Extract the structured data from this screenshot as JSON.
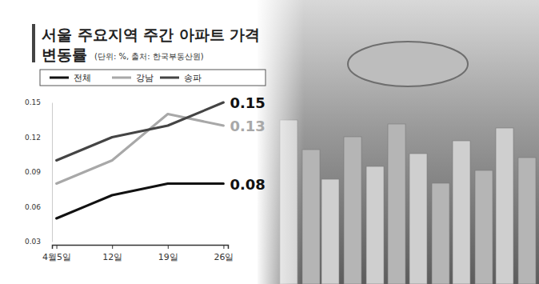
{
  "chart_data": {
    "type": "line",
    "title": "서울 주요지역 주간 아파트 가격 변동률",
    "subtitle": "(단위: %, 출처: 한국부동산원)",
    "categories": [
      "4월5일",
      "12일",
      "19일",
      "26일"
    ],
    "series": [
      {
        "name": "전체",
        "color": "#111111",
        "values": [
          0.05,
          0.07,
          0.08,
          0.08
        ]
      },
      {
        "name": "강남",
        "color": "#a8a8a8",
        "values": [
          0.08,
          0.1,
          0.14,
          0.13
        ]
      },
      {
        "name": "송파",
        "color": "#444444",
        "values": [
          0.1,
          0.12,
          0.13,
          0.15
        ]
      }
    ],
    "ylim": [
      0.03,
      0.15
    ],
    "yticks": [
      0.03,
      0.06,
      0.09,
      0.12,
      0.15
    ],
    "grid": false,
    "legend": "top",
    "annotations": [
      {
        "text": "0.15",
        "x": "26일",
        "y": 0.15,
        "color": "#111111"
      },
      {
        "text": "0.13",
        "x": "26일",
        "y": 0.13,
        "color": "#a8a8a8"
      },
      {
        "text": "0.08",
        "x": "26일",
        "y": 0.08,
        "color": "#111111"
      }
    ]
  }
}
